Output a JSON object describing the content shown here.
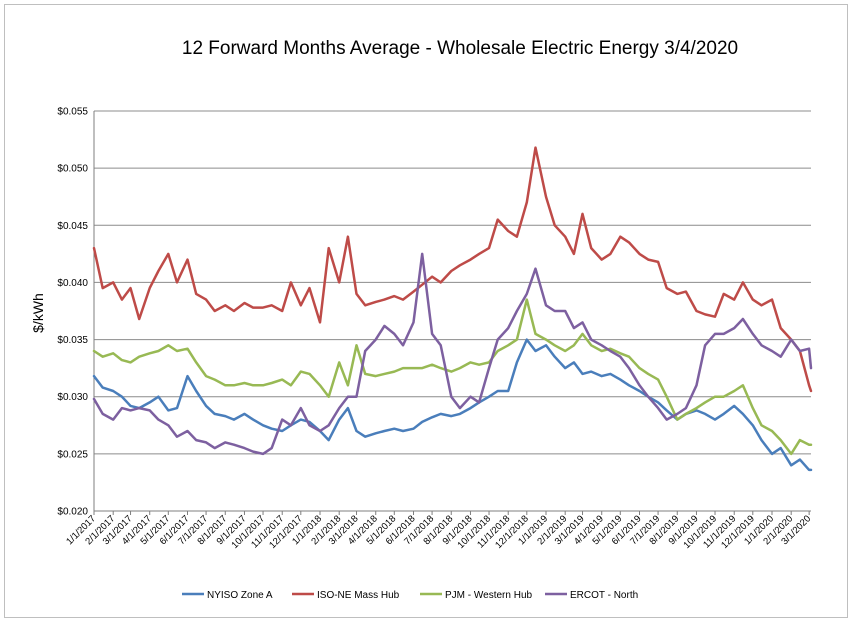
{
  "chart_data": {
    "type": "line",
    "title": "12 Forward Months Average - Wholesale Electric Energy 3/4/2020",
    "xlabel": "",
    "ylabel": "$/kWh",
    "ylim": [
      0.02,
      0.055
    ],
    "y_ticks": [
      "$0.020",
      "$0.025",
      "$0.030",
      "$0.035",
      "$0.040",
      "$0.045",
      "$0.050",
      "$0.055"
    ],
    "y_tick_values": [
      0.02,
      0.025,
      0.03,
      0.035,
      0.04,
      0.045,
      0.05,
      0.055
    ],
    "x_ticks": [
      "1/1/2017",
      "2/1/2017",
      "3/1/2017",
      "4/1/2017",
      "5/1/2017",
      "6/1/2017",
      "7/1/2017",
      "8/1/2017",
      "9/1/2017",
      "10/1/2017",
      "11/1/2017",
      "12/1/2017",
      "1/1/2018",
      "2/1/2018",
      "3/1/2018",
      "4/1/2018",
      "5/1/2018",
      "6/1/2018",
      "7/1/2018",
      "8/1/2018",
      "9/1/2018",
      "10/1/2018",
      "11/1/2018",
      "12/1/2018",
      "1/1/2019",
      "2/1/2019",
      "3/1/2019",
      "4/1/2019",
      "5/1/2019",
      "6/1/2019",
      "7/1/2019",
      "8/1/2019",
      "9/1/2019",
      "10/1/2019",
      "11/1/2019",
      "12/1/2019",
      "1/1/2020",
      "2/1/2020",
      "3/1/2020"
    ],
    "x_range": [
      "1/1/2017",
      "3/4/2020"
    ],
    "grid": true,
    "legend_position": "bottom",
    "series": [
      {
        "name": "NYISO Zone A",
        "color": "#4a7ebb",
        "x": [
          "1/1/2017",
          "1/15/2017",
          "2/1/2017",
          "2/15/2017",
          "3/1/2017",
          "3/15/2017",
          "4/1/2017",
          "4/15/2017",
          "5/1/2017",
          "5/15/2017",
          "6/1/2017",
          "6/15/2017",
          "7/1/2017",
          "7/15/2017",
          "8/1/2017",
          "8/15/2017",
          "9/1/2017",
          "9/15/2017",
          "10/1/2017",
          "10/15/2017",
          "11/1/2017",
          "11/15/2017",
          "12/1/2017",
          "12/15/2017",
          "1/1/2018",
          "1/15/2018",
          "2/1/2018",
          "2/15/2018",
          "3/1/2018",
          "3/15/2018",
          "4/1/2018",
          "4/15/2018",
          "5/1/2018",
          "5/15/2018",
          "6/1/2018",
          "6/15/2018",
          "7/1/2018",
          "7/15/2018",
          "8/1/2018",
          "8/15/2018",
          "9/1/2018",
          "9/15/2018",
          "10/1/2018",
          "10/15/2018",
          "11/1/2018",
          "11/15/2018",
          "12/1/2018",
          "12/15/2018",
          "1/1/2019",
          "1/15/2019",
          "2/1/2019",
          "2/15/2019",
          "3/1/2019",
          "3/15/2019",
          "4/1/2019",
          "4/15/2019",
          "5/1/2019",
          "5/15/2019",
          "6/1/2019",
          "6/15/2019",
          "7/1/2019",
          "7/15/2019",
          "8/1/2019",
          "8/15/2019",
          "9/1/2019",
          "9/15/2019",
          "10/1/2019",
          "10/15/2019",
          "11/1/2019",
          "11/15/2019",
          "12/1/2019",
          "12/15/2019",
          "1/1/2020",
          "1/15/2020",
          "2/1/2020",
          "2/15/2020",
          "3/1/2020",
          "3/4/2020"
        ],
        "values": [
          0.0318,
          0.0308,
          0.0305,
          0.03,
          0.0292,
          0.029,
          0.0295,
          0.03,
          0.0288,
          0.029,
          0.0318,
          0.0305,
          0.0292,
          0.0285,
          0.0283,
          0.028,
          0.0285,
          0.028,
          0.0275,
          0.0272,
          0.027,
          0.0275,
          0.028,
          0.0278,
          0.027,
          0.0262,
          0.028,
          0.029,
          0.027,
          0.0265,
          0.0268,
          0.027,
          0.0272,
          0.027,
          0.0272,
          0.0278,
          0.0282,
          0.0285,
          0.0283,
          0.0285,
          0.029,
          0.0295,
          0.03,
          0.0305,
          0.0305,
          0.033,
          0.035,
          0.034,
          0.0345,
          0.0335,
          0.0325,
          0.033,
          0.032,
          0.0322,
          0.0318,
          0.032,
          0.0315,
          0.031,
          0.0305,
          0.03,
          0.0295,
          0.0288,
          0.028,
          0.0285,
          0.0288,
          0.0285,
          0.028,
          0.0285,
          0.0292,
          0.0285,
          0.0275,
          0.0262,
          0.025,
          0.0255,
          0.024,
          0.0245,
          0.0236,
          0.0236
        ]
      },
      {
        "name": "ISO-NE Mass Hub",
        "color": "#be4b48",
        "x": [
          "1/1/2017",
          "1/15/2017",
          "2/1/2017",
          "2/15/2017",
          "3/1/2017",
          "3/15/2017",
          "4/1/2017",
          "4/15/2017",
          "5/1/2017",
          "5/15/2017",
          "6/1/2017",
          "6/15/2017",
          "7/1/2017",
          "7/15/2017",
          "8/1/2017",
          "8/15/2017",
          "9/1/2017",
          "9/15/2017",
          "10/1/2017",
          "10/15/2017",
          "11/1/2017",
          "11/15/2017",
          "12/1/2017",
          "12/15/2017",
          "1/1/2018",
          "1/15/2018",
          "2/1/2018",
          "2/15/2018",
          "3/1/2018",
          "3/15/2018",
          "4/1/2018",
          "4/15/2018",
          "5/1/2018",
          "5/15/2018",
          "6/1/2018",
          "6/15/2018",
          "7/1/2018",
          "7/15/2018",
          "8/1/2018",
          "8/15/2018",
          "9/1/2018",
          "9/15/2018",
          "10/1/2018",
          "10/15/2018",
          "11/1/2018",
          "11/15/2018",
          "12/1/2018",
          "12/15/2018",
          "1/1/2019",
          "1/15/2019",
          "2/1/2019",
          "2/15/2019",
          "3/1/2019",
          "3/15/2019",
          "4/1/2019",
          "4/15/2019",
          "5/1/2019",
          "5/15/2019",
          "6/1/2019",
          "6/15/2019",
          "7/1/2019",
          "7/15/2019",
          "8/1/2019",
          "8/15/2019",
          "9/1/2019",
          "9/15/2019",
          "10/1/2019",
          "10/15/2019",
          "11/1/2019",
          "11/15/2019",
          "12/1/2019",
          "12/15/2019",
          "1/1/2020",
          "1/15/2020",
          "2/1/2020",
          "2/15/2020",
          "3/1/2020",
          "3/4/2020"
        ],
        "values": [
          0.043,
          0.0395,
          0.04,
          0.0385,
          0.0395,
          0.0368,
          0.0395,
          0.041,
          0.0425,
          0.04,
          0.042,
          0.039,
          0.0385,
          0.0375,
          0.038,
          0.0375,
          0.0382,
          0.0378,
          0.0378,
          0.038,
          0.0375,
          0.04,
          0.038,
          0.0395,
          0.0365,
          0.043,
          0.04,
          0.044,
          0.039,
          0.038,
          0.0383,
          0.0385,
          0.0388,
          0.0385,
          0.0392,
          0.0398,
          0.0405,
          0.04,
          0.041,
          0.0415,
          0.042,
          0.0425,
          0.043,
          0.0455,
          0.0445,
          0.044,
          0.047,
          0.0518,
          0.0475,
          0.045,
          0.044,
          0.0425,
          0.046,
          0.043,
          0.042,
          0.0425,
          0.044,
          0.0435,
          0.0425,
          0.042,
          0.0418,
          0.0395,
          0.039,
          0.0392,
          0.0375,
          0.0372,
          0.037,
          0.039,
          0.0385,
          0.04,
          0.0385,
          0.038,
          0.0385,
          0.036,
          0.035,
          0.034,
          0.031,
          0.0305
        ]
      },
      {
        "name": "PJM - Western Hub",
        "color": "#98b954",
        "x": [
          "1/1/2017",
          "1/15/2017",
          "2/1/2017",
          "2/15/2017",
          "3/1/2017",
          "3/15/2017",
          "4/1/2017",
          "4/15/2017",
          "5/1/2017",
          "5/15/2017",
          "6/1/2017",
          "6/15/2017",
          "7/1/2017",
          "7/15/2017",
          "8/1/2017",
          "8/15/2017",
          "9/1/2017",
          "9/15/2017",
          "10/1/2017",
          "10/15/2017",
          "11/1/2017",
          "11/15/2017",
          "12/1/2017",
          "12/15/2017",
          "1/1/2018",
          "1/15/2018",
          "2/1/2018",
          "2/15/2018",
          "3/1/2018",
          "3/15/2018",
          "4/1/2018",
          "4/15/2018",
          "5/1/2018",
          "5/15/2018",
          "6/1/2018",
          "6/15/2018",
          "7/1/2018",
          "7/15/2018",
          "8/1/2018",
          "8/15/2018",
          "9/1/2018",
          "9/15/2018",
          "10/1/2018",
          "10/15/2018",
          "11/1/2018",
          "11/15/2018",
          "12/1/2018",
          "12/15/2018",
          "1/1/2019",
          "1/15/2019",
          "2/1/2019",
          "2/15/2019",
          "3/1/2019",
          "3/15/2019",
          "4/1/2019",
          "4/15/2019",
          "5/1/2019",
          "5/15/2019",
          "6/1/2019",
          "6/15/2019",
          "7/1/2019",
          "7/15/2019",
          "8/1/2019",
          "8/15/2019",
          "9/1/2019",
          "9/15/2019",
          "10/1/2019",
          "10/15/2019",
          "11/1/2019",
          "11/15/2019",
          "12/1/2019",
          "12/15/2019",
          "1/1/2020",
          "1/15/2020",
          "2/1/2020",
          "2/15/2020",
          "3/1/2020",
          "3/4/2020"
        ],
        "values": [
          0.034,
          0.0335,
          0.0338,
          0.0332,
          0.033,
          0.0335,
          0.0338,
          0.034,
          0.0345,
          0.034,
          0.0342,
          0.033,
          0.0318,
          0.0315,
          0.031,
          0.031,
          0.0312,
          0.031,
          0.031,
          0.0312,
          0.0315,
          0.031,
          0.0322,
          0.032,
          0.031,
          0.03,
          0.033,
          0.031,
          0.0345,
          0.032,
          0.0318,
          0.032,
          0.0322,
          0.0325,
          0.0325,
          0.0325,
          0.0328,
          0.0325,
          0.0322,
          0.0325,
          0.033,
          0.0328,
          0.033,
          0.034,
          0.0345,
          0.035,
          0.0385,
          0.0355,
          0.035,
          0.0345,
          0.034,
          0.0345,
          0.0355,
          0.0345,
          0.034,
          0.0342,
          0.0338,
          0.0335,
          0.0325,
          0.032,
          0.0315,
          0.03,
          0.028,
          0.0285,
          0.029,
          0.0295,
          0.03,
          0.03,
          0.0305,
          0.031,
          0.029,
          0.0275,
          0.027,
          0.0262,
          0.025,
          0.0262,
          0.0258,
          0.0258
        ]
      },
      {
        "name": "ERCOT - North",
        "color": "#7d60a0",
        "x": [
          "1/1/2017",
          "1/15/2017",
          "2/1/2017",
          "2/15/2017",
          "3/1/2017",
          "3/15/2017",
          "4/1/2017",
          "4/15/2017",
          "5/1/2017",
          "5/15/2017",
          "6/1/2017",
          "6/15/2017",
          "7/1/2017",
          "7/15/2017",
          "8/1/2017",
          "8/15/2017",
          "9/1/2017",
          "9/15/2017",
          "10/1/2017",
          "10/15/2017",
          "11/1/2017",
          "11/15/2017",
          "12/1/2017",
          "12/15/2017",
          "1/1/2018",
          "1/15/2018",
          "2/1/2018",
          "2/15/2018",
          "3/1/2018",
          "3/15/2018",
          "4/1/2018",
          "4/15/2018",
          "5/1/2018",
          "5/15/2018",
          "6/1/2018",
          "6/15/2018",
          "7/1/2018",
          "7/15/2018",
          "8/1/2018",
          "8/15/2018",
          "9/1/2018",
          "9/15/2018",
          "10/1/2018",
          "10/15/2018",
          "11/1/2018",
          "11/15/2018",
          "12/1/2018",
          "12/15/2018",
          "1/1/2019",
          "1/15/2019",
          "2/1/2019",
          "2/15/2019",
          "3/1/2019",
          "3/15/2019",
          "4/1/2019",
          "4/15/2019",
          "5/1/2019",
          "5/15/2019",
          "6/1/2019",
          "6/15/2019",
          "7/1/2019",
          "7/15/2019",
          "8/1/2019",
          "8/15/2019",
          "9/1/2019",
          "9/15/2019",
          "10/1/2019",
          "10/15/2019",
          "11/1/2019",
          "11/15/2019",
          "12/1/2019",
          "12/15/2019",
          "1/1/2020",
          "1/15/2020",
          "2/1/2020",
          "2/15/2020",
          "3/1/2020",
          "3/4/2020"
        ],
        "values": [
          0.0298,
          0.0285,
          0.028,
          0.029,
          0.0288,
          0.029,
          0.0288,
          0.028,
          0.0275,
          0.0265,
          0.027,
          0.0262,
          0.026,
          0.0255,
          0.026,
          0.0258,
          0.0255,
          0.0252,
          0.025,
          0.0255,
          0.028,
          0.0275,
          0.029,
          0.0275,
          0.027,
          0.0275,
          0.029,
          0.03,
          0.03,
          0.034,
          0.035,
          0.0362,
          0.0355,
          0.0345,
          0.0365,
          0.0425,
          0.0355,
          0.0345,
          0.03,
          0.029,
          0.03,
          0.0295,
          0.0325,
          0.035,
          0.036,
          0.0375,
          0.039,
          0.0412,
          0.038,
          0.0375,
          0.0375,
          0.036,
          0.0365,
          0.035,
          0.0345,
          0.034,
          0.0335,
          0.0325,
          0.031,
          0.03,
          0.029,
          0.028,
          0.0285,
          0.029,
          0.031,
          0.0345,
          0.0355,
          0.0355,
          0.036,
          0.0368,
          0.0355,
          0.0345,
          0.034,
          0.0335,
          0.035,
          0.034,
          0.0342,
          0.0325
        ]
      }
    ]
  }
}
